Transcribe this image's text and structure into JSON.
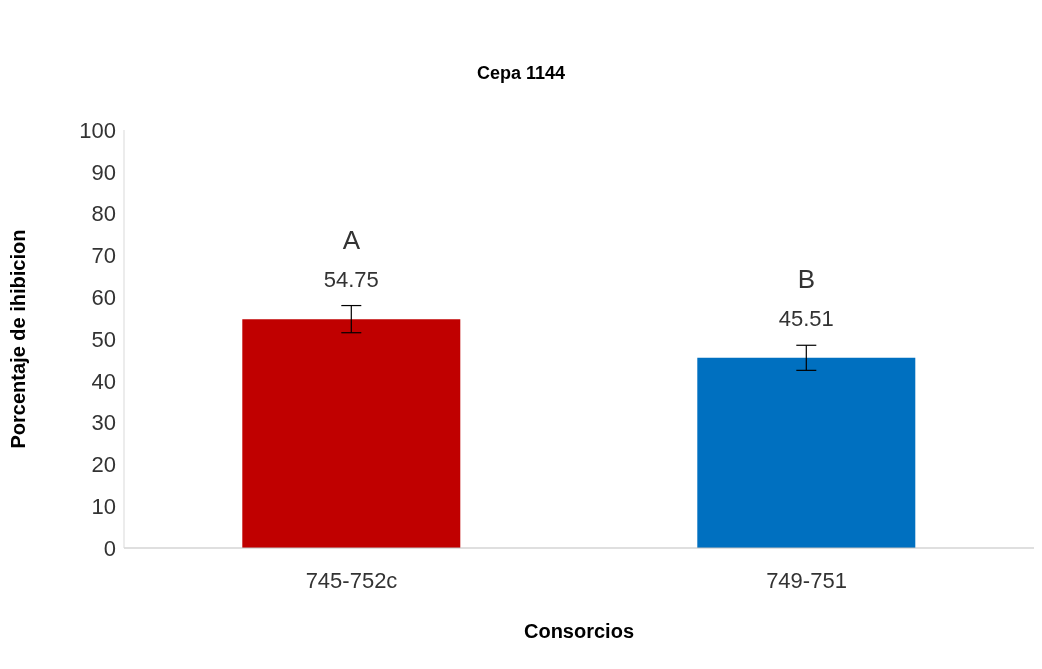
{
  "chart_data": {
    "type": "bar",
    "title": "Cepa 1144",
    "xlabel": "Consorcios",
    "ylabel": "Porcentaje de ihibicion",
    "categories": [
      "745-752c",
      "749-751"
    ],
    "values": [
      54.75,
      45.51
    ],
    "colors": [
      "#c00000",
      "#0070c0"
    ],
    "errors": [
      [
        51.5,
        58
      ],
      [
        42.5,
        48.5
      ]
    ],
    "data_labels": true,
    "annotations": [
      "A",
      "B"
    ],
    "ylim": [
      0,
      100
    ],
    "yticks": [
      0,
      10,
      20,
      30,
      40,
      50,
      60,
      70,
      80,
      90,
      100
    ],
    "grid": false,
    "legend": false
  }
}
